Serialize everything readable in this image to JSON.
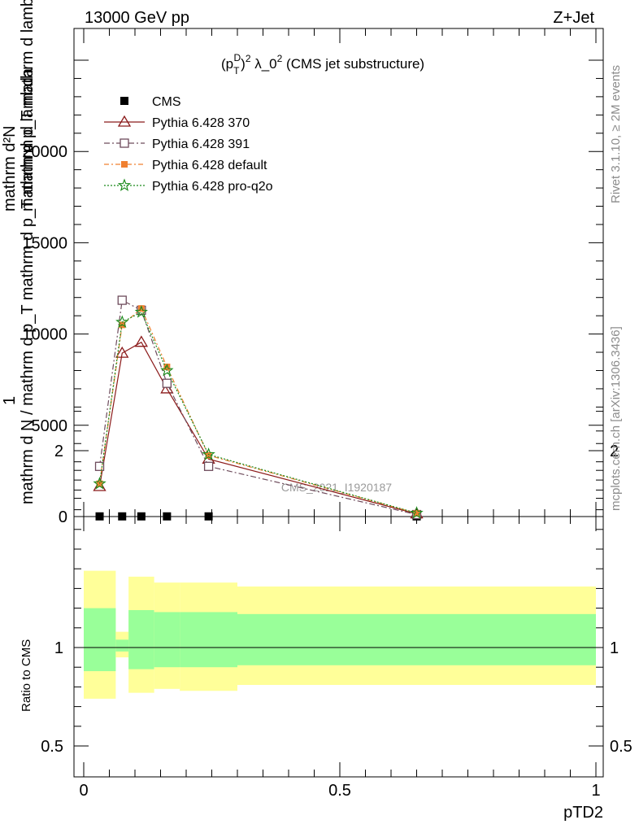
{
  "header": {
    "energy_label": "13000 GeV pp",
    "process_label": "Z+Jet"
  },
  "side_text": {
    "rivet": "Rivet 3.1.10, ≥ 2M events",
    "mcplots": "mcplots.cern.ch [arXiv:1306.3436]"
  },
  "chart_data": {
    "type": "line",
    "title": "(p_T^D)^2 λ_0^2 (CMS jet substructure)",
    "title_parts": {
      "open": "(p",
      "sup_d": "D",
      "sub_t": "T",
      "close": ")",
      "sup_2": "2",
      "rest": " λ_0",
      "sup_2b": "2",
      "tail": " (CMS jet substructure)"
    },
    "watermark": "CMS_2021_I1920187",
    "ylabel_top": "1",
    "ylabel_bottom": "mathrm d N / mathrm d p_T mathrm d p_T mathrm d lambda",
    "ylabel_num": "mathrm d²N",
    "ylabel_den": "mathrm d p_T mathrm d lambda",
    "xlabel": "pTD2",
    "ratio_ylabel": "Ratio to CMS",
    "xlim": [
      0,
      1
    ],
    "ylim": [
      0,
      25000
    ],
    "ratio_ylim": [
      0.35,
      2.35
    ],
    "x_ticks": [
      "0",
      "0.5",
      "1"
    ],
    "y_ticks": [
      "0",
      "5000",
      "10000",
      "15000",
      "20000"
    ],
    "ratio_ticks": [
      "0.5",
      "1",
      "2"
    ],
    "legend_position": "top-left",
    "bins": [
      [
        0.0,
        0.0625
      ],
      [
        0.0625,
        0.0875
      ],
      [
        0.0875,
        0.1375
      ],
      [
        0.1375,
        0.1875
      ],
      [
        0.1875,
        0.3
      ],
      [
        0.3,
        1.0
      ]
    ],
    "x": [
      0.031,
      0.075,
      0.1125,
      0.1625,
      0.2438,
      0.65
    ],
    "series": [
      {
        "name": "CMS",
        "color": "#000000",
        "marker": "square-filled",
        "values": [
          10,
          10,
          10,
          10,
          10,
          10
        ]
      },
      {
        "name": "Pythia 6.428 370",
        "color": "#8b1a1a",
        "marker": "triangle",
        "dash": "",
        "values": [
          1650,
          8950,
          9550,
          7000,
          3150,
          150
        ]
      },
      {
        "name": "Pythia 6.428 391",
        "color": "#6e4c5c",
        "marker": "square-open",
        "dash": "7,3,2,3",
        "values": [
          2750,
          11850,
          11300,
          7300,
          2750,
          110
        ]
      },
      {
        "name": "Pythia 6.428 default",
        "color": "#f08030",
        "marker": "square-small",
        "dash": "6,3,2,3",
        "values": [
          1800,
          10500,
          11400,
          8200,
          3350,
          180
        ]
      },
      {
        "name": "Pythia 6.428 pro-q2o",
        "color": "#1a8a1a",
        "marker": "star",
        "dash": "2,2",
        "values": [
          1800,
          10650,
          11200,
          8000,
          3400,
          190
        ]
      }
    ],
    "ratio_bands": {
      "outer_color": "#ffff99",
      "inner_color": "#99ff99",
      "outer": [
        [
          0.74,
          1.39
        ],
        [
          0.95,
          1.08
        ],
        [
          0.77,
          1.36
        ],
        [
          0.79,
          1.33
        ],
        [
          0.78,
          1.33
        ],
        [
          0.81,
          1.31
        ]
      ],
      "inner": [
        [
          0.88,
          1.2
        ],
        [
          0.98,
          1.04
        ],
        [
          0.89,
          1.19
        ],
        [
          0.9,
          1.18
        ],
        [
          0.9,
          1.18
        ],
        [
          0.91,
          1.17
        ]
      ]
    }
  }
}
